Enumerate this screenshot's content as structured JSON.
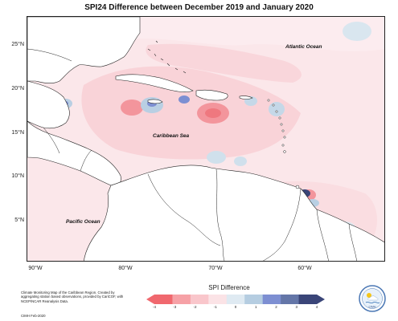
{
  "title": "SPI24 Difference between December 2019 and January 2020",
  "map": {
    "y_ticks": [
      "25°N",
      "20°N",
      "15°N",
      "10°N",
      "5°N"
    ],
    "x_ticks": [
      "90°W",
      "80°W",
      "70°W",
      "60°W"
    ],
    "labels": {
      "atlantic": "Atlantic Ocean",
      "caribbean": "Caribbean Sea",
      "pacific": "Pacific Ocean"
    }
  },
  "legend": {
    "title": "SPI Difference",
    "ticks": [
      "-4",
      "-3",
      "-2",
      "-1",
      "0",
      "1",
      "2",
      "3",
      "4"
    ],
    "colors": [
      "#f0686e",
      "#f6a1a6",
      "#f9c6cb",
      "#fbe3e6",
      "#dfeaf2",
      "#b5cde1",
      "#7d8fd2",
      "#6476a8",
      "#3a4578"
    ]
  },
  "credit": {
    "text": "Climate Monitoring Map of the Caribbean Region. Created by aggregating station based observations, provided by CariCOF, with NCEP/NCAR Reanalysis Data.",
    "date": "CIMH Feb-2020"
  },
  "logo": {
    "text": "CIMH",
    "icon": "cimh-logo-icon"
  }
}
